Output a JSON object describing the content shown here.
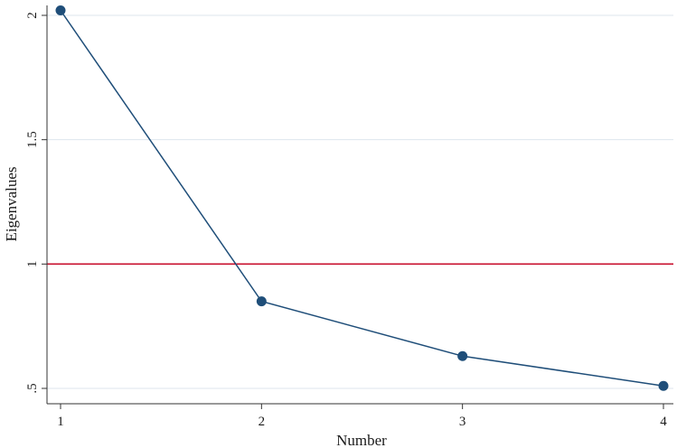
{
  "chart_data": {
    "type": "line",
    "title": "",
    "xlabel": "Number",
    "ylabel": "Eigenvalues",
    "x": [
      1,
      2,
      3,
      4
    ],
    "series": [
      {
        "values": [
          2.02,
          0.85,
          0.63,
          0.51
        ],
        "color": "#1f4e79"
      }
    ],
    "reference_line": {
      "y": 1,
      "color": "#c8102e"
    },
    "xticks": [
      1,
      2,
      3,
      4
    ],
    "xtick_labels": [
      "1",
      "2",
      "3",
      "4"
    ],
    "yticks": [
      0.5,
      1,
      1.5,
      2
    ],
    "ytick_labels": [
      ".5",
      "1",
      "1.5",
      "2"
    ],
    "xlim": [
      1,
      4
    ],
    "ylim": [
      0.5,
      2.05
    ],
    "grid": "horizontal",
    "grid_color": "#dde6ee",
    "legend": "none"
  }
}
